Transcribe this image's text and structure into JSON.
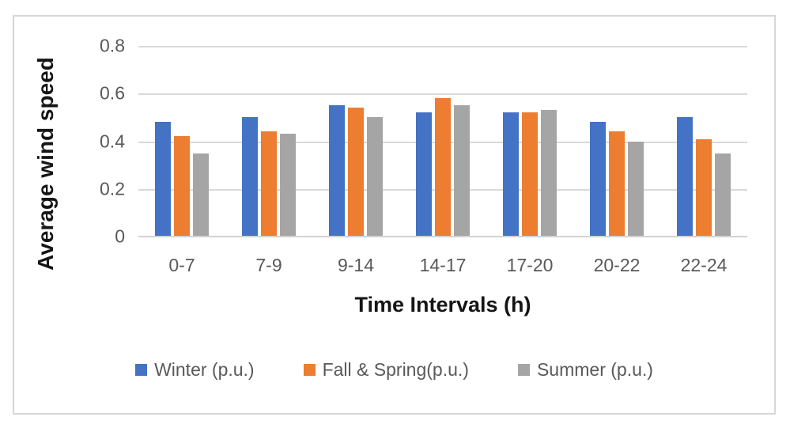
{
  "figure": {
    "border_color": "#D6D6D6",
    "background": "#FFFFFF",
    "gridline_color": "#D9D9D9"
  },
  "chart_data": {
    "type": "bar",
    "title": "",
    "xlabel": "Time Intervals (h)",
    "ylabel": "Average wind speed",
    "categories": [
      "0-7",
      "7-9",
      "9-14",
      "14-17",
      "17-20",
      "20-22",
      "22-24"
    ],
    "series": [
      {
        "name": "Winter (p.u.)",
        "color": "#4472C4",
        "values": [
          0.48,
          0.5,
          0.55,
          0.52,
          0.52,
          0.48,
          0.5
        ]
      },
      {
        "name": "Fall & Spring(p.u.)",
        "color": "#ED7D31",
        "values": [
          0.42,
          0.44,
          0.54,
          0.58,
          0.52,
          0.44,
          0.41
        ]
      },
      {
        "name": "Summer (p.u.)",
        "color": "#A5A5A5",
        "values": [
          0.35,
          0.43,
          0.5,
          0.55,
          0.53,
          0.4,
          0.35
        ]
      }
    ],
    "y_tick_labels": [
      "0.8",
      "0.6",
      "0.4",
      "0.2",
      "0"
    ],
    "ylim": [
      0,
      0.8
    ],
    "grid": "horizontal",
    "legend_position": "bottom"
  }
}
